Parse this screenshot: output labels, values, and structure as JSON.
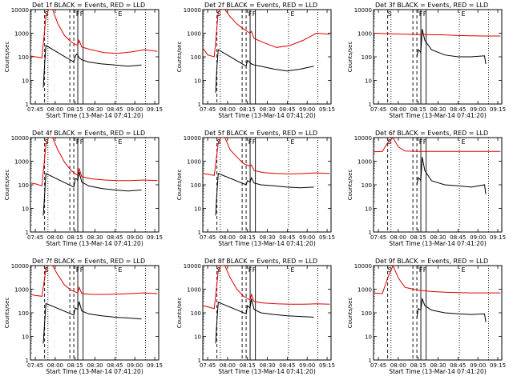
{
  "figure": {
    "layout": "3x3 grid",
    "colors": {
      "events": "#000000",
      "lld": "#dd0000",
      "axes": "#000000",
      "background": "#ffffff"
    }
  },
  "chart_data": [
    {
      "type": "line",
      "title": "Det 1f BLACK = Events, RED = LLD",
      "detector": "1f",
      "xlabel": "Start Time (13-Mar-14 07:41:20)",
      "ylabel": "Counts/sec",
      "ylim": [
        1,
        10000
      ],
      "yscale": "log",
      "yticks": [
        "1",
        "10",
        "100",
        "1000",
        "10000"
      ],
      "xticks": [
        "07:45",
        "08:00",
        "08:15",
        "08:30",
        "08:45",
        "09:00",
        "09:15"
      ],
      "xlim": [
        "07:41:20",
        "09:18:00"
      ],
      "marker_labels": [
        "S",
        "F",
        "F",
        "E"
      ],
      "series": [
        {
          "name": "Events",
          "color": "black",
          "x": [
            "07:51",
            "07:52",
            "07:53",
            "08:14",
            "08:15",
            "08:16",
            "08:17",
            "08:18",
            "08:20",
            "08:25",
            "08:35",
            "08:45",
            "08:55",
            "09:05"
          ],
          "y": [
            5,
            50,
            300,
            60,
            100,
            130,
            120,
            90,
            75,
            60,
            50,
            45,
            40,
            45
          ]
        },
        {
          "name": "LLD",
          "color": "red",
          "x": [
            "07:41",
            "07:45",
            "07:50",
            "07:53",
            "07:55",
            "07:58",
            "08:02",
            "08:07",
            "08:12",
            "08:17",
            "08:18",
            "08:20",
            "08:27",
            "08:37",
            "08:47",
            "08:57",
            "09:07",
            "09:17"
          ],
          "y": [
            110,
            100,
            90,
            5000,
            10000,
            10000,
            2500,
            800,
            420,
            300,
            500,
            260,
            200,
            150,
            140,
            160,
            200,
            170
          ]
        }
      ]
    },
    {
      "type": "line",
      "title": "Det 2f BLACK = Events, RED = LLD",
      "detector": "2f",
      "xlabel": "Start Time (13-Mar-14 07:41:20)",
      "ylabel": "Counts/sec",
      "ylim": [
        1,
        10000
      ],
      "yscale": "log",
      "yticks": [
        "1",
        "10",
        "100",
        "1000",
        "10000"
      ],
      "xticks": [
        "07:45",
        "08:00",
        "08:15",
        "08:30",
        "08:45",
        "09:00",
        "09:15"
      ],
      "xlim": [
        "07:41:20",
        "09:18:00"
      ],
      "marker_labels": [
        "S",
        "F",
        "F",
        "E"
      ],
      "series": [
        {
          "name": "Events",
          "color": "black",
          "x": [
            "07:51",
            "07:52",
            "07:53",
            "08:14",
            "08:15",
            "08:16",
            "08:17",
            "08:18",
            "08:20",
            "08:25",
            "08:35",
            "08:45",
            "08:55",
            "09:05"
          ],
          "y": [
            3,
            40,
            200,
            40,
            70,
            65,
            55,
            50,
            45,
            40,
            30,
            25,
            30,
            40
          ]
        },
        {
          "name": "LLD",
          "color": "red",
          "x": [
            "07:41",
            "07:45",
            "07:50",
            "07:53",
            "07:55",
            "07:58",
            "08:02",
            "08:07",
            "08:12",
            "08:17",
            "08:18",
            "08:20",
            "08:27",
            "08:37",
            "08:47",
            "08:57",
            "09:07",
            "09:17"
          ],
          "y": [
            250,
            120,
            100,
            8000,
            10000,
            10000,
            5000,
            2500,
            1500,
            1000,
            1200,
            600,
            400,
            250,
            300,
            500,
            1000,
            900
          ]
        }
      ]
    },
    {
      "type": "line",
      "title": "Det 3f BLACK = Events, RED = LLD",
      "detector": "3f",
      "xlabel": "Start Time (13-Mar-14 07:41:20)",
      "ylabel": "Counts/sec",
      "ylim": [
        1,
        10000
      ],
      "yscale": "log",
      "yticks": [
        "1",
        "10",
        "100",
        "1000",
        "10000"
      ],
      "xticks": [
        "07:45",
        "08:00",
        "08:15",
        "08:30",
        "08:45",
        "09:00",
        "09:15"
      ],
      "xlim": [
        "07:41:20",
        "09:18:00"
      ],
      "marker_labels": [
        "S",
        "F",
        "F",
        "E"
      ],
      "series": [
        {
          "name": "Events",
          "color": "black",
          "x": [
            "08:14",
            "08:15",
            "08:16",
            "08:17",
            "08:18",
            "08:20",
            "08:25",
            "08:35",
            "08:45",
            "08:55",
            "09:05",
            "09:06"
          ],
          "y": [
            100,
            200,
            180,
            150,
            1500,
            500,
            200,
            120,
            100,
            100,
            110,
            50
          ]
        },
        {
          "name": "LLD",
          "color": "red",
          "x": [
            "07:41",
            "07:55",
            "08:05",
            "08:15",
            "08:25",
            "08:35",
            "08:45",
            "08:55",
            "09:05",
            "09:17"
          ],
          "y": [
            1000,
            950,
            900,
            880,
            860,
            850,
            800,
            780,
            760,
            760
          ]
        }
      ]
    },
    {
      "type": "line",
      "title": "Det 4f BLACK = Events, RED = LLD",
      "detector": "4f",
      "xlabel": "Start Time (13-Mar-14 07:41:20)",
      "ylabel": "Counts/sec",
      "ylim": [
        1,
        10000
      ],
      "yscale": "log",
      "yticks": [
        "1",
        "10",
        "100",
        "1000",
        "10000"
      ],
      "xticks": [
        "07:45",
        "08:00",
        "08:15",
        "08:30",
        "08:45",
        "09:00",
        "09:15"
      ],
      "xlim": [
        "07:41:20",
        "09:18:00"
      ],
      "marker_labels": [
        "S",
        "F",
        "F",
        "E"
      ],
      "series": [
        {
          "name": "Events",
          "color": "black",
          "x": [
            "07:51",
            "07:52",
            "07:53",
            "08:14",
            "08:15",
            "08:16",
            "08:17",
            "08:18",
            "08:20",
            "08:25",
            "08:35",
            "08:45",
            "08:55",
            "09:05"
          ],
          "y": [
            5,
            40,
            300,
            80,
            180,
            180,
            150,
            350,
            130,
            90,
            70,
            60,
            55,
            60
          ]
        },
        {
          "name": "LLD",
          "color": "red",
          "x": [
            "07:41",
            "07:45",
            "07:50",
            "07:53",
            "07:55",
            "07:58",
            "08:02",
            "08:07",
            "08:12",
            "08:17",
            "08:18",
            "08:20",
            "08:27",
            "08:37",
            "08:47",
            "08:57",
            "09:07",
            "09:17"
          ],
          "y": [
            120,
            110,
            90,
            5000,
            10000,
            10000,
            3000,
            900,
            400,
            250,
            500,
            220,
            180,
            160,
            150,
            150,
            160,
            150
          ]
        }
      ]
    },
    {
      "type": "line",
      "title": "Det 5f BLACK = Events, RED = LLD",
      "detector": "5f",
      "xlabel": "Start Time (13-Mar-14 07:41:20)",
      "ylabel": "Counts/sec",
      "ylim": [
        1,
        10000
      ],
      "yscale": "log",
      "yticks": [
        "1",
        "10",
        "100",
        "1000",
        "10000"
      ],
      "xticks": [
        "07:45",
        "08:00",
        "08:15",
        "08:30",
        "08:45",
        "09:00",
        "09:15"
      ],
      "xlim": [
        "07:41:20",
        "09:18:00"
      ],
      "marker_labels": [
        "S",
        "F",
        "F",
        "E"
      ],
      "series": [
        {
          "name": "Events",
          "color": "black",
          "x": [
            "07:51",
            "07:52",
            "07:53",
            "08:14",
            "08:15",
            "08:16",
            "08:17",
            "08:18",
            "08:20",
            "08:25",
            "08:35",
            "08:45",
            "08:55",
            "09:05"
          ],
          "y": [
            5,
            50,
            300,
            100,
            150,
            140,
            130,
            200,
            120,
            100,
            90,
            80,
            75,
            80
          ]
        },
        {
          "name": "LLD",
          "color": "red",
          "x": [
            "07:41",
            "07:45",
            "07:50",
            "07:53",
            "07:55",
            "07:58",
            "08:02",
            "08:07",
            "08:12",
            "08:17",
            "08:18",
            "08:20",
            "08:27",
            "08:37",
            "08:47",
            "08:57",
            "09:07",
            "09:17"
          ],
          "y": [
            300,
            280,
            250,
            6000,
            10000,
            10000,
            3000,
            1500,
            800,
            600,
            700,
            400,
            330,
            300,
            290,
            300,
            320,
            300
          ]
        }
      ]
    },
    {
      "type": "line",
      "title": "Det 6f BLACK = Events, RED = LLD",
      "detector": "6f",
      "xlabel": "Start Time (13-Mar-14 07:41:20)",
      "ylabel": "Counts/sec",
      "ylim": [
        1,
        10000
      ],
      "yscale": "log",
      "yticks": [
        "1",
        "10",
        "100",
        "1000",
        "10000"
      ],
      "xticks": [
        "07:45",
        "08:00",
        "08:15",
        "08:30",
        "08:45",
        "09:00",
        "09:15"
      ],
      "xlim": [
        "07:41:20",
        "09:18:00"
      ],
      "marker_labels": [
        "S",
        "F",
        "F",
        "E"
      ],
      "series": [
        {
          "name": "Events",
          "color": "black",
          "x": [
            "08:14",
            "08:15",
            "08:16",
            "08:17",
            "08:18",
            "08:20",
            "08:25",
            "08:35",
            "08:45",
            "08:55",
            "09:05",
            "09:06"
          ],
          "y": [
            100,
            200,
            180,
            150,
            1500,
            400,
            150,
            100,
            90,
            80,
            100,
            40
          ]
        },
        {
          "name": "LLD",
          "color": "red",
          "x": [
            "07:41",
            "07:48",
            "07:52",
            "07:56",
            "08:00",
            "08:05",
            "08:15",
            "08:25",
            "08:35",
            "08:45",
            "08:55",
            "09:05",
            "09:17"
          ],
          "y": [
            2500,
            2600,
            6000,
            10000,
            4000,
            2700,
            2600,
            2600,
            2600,
            2600,
            2600,
            2600,
            2600
          ]
        }
      ]
    },
    {
      "type": "line",
      "title": "Det 7f BLACK = Events, RED = LLD",
      "detector": "7f",
      "xlabel": "Start Time (13-Mar-14 07:41:20)",
      "ylabel": "Counts/sec",
      "ylim": [
        1,
        10000
      ],
      "yscale": "log",
      "yticks": [
        "1",
        "10",
        "100",
        "1000",
        "10000"
      ],
      "xticks": [
        "07:45",
        "08:00",
        "08:15",
        "08:30",
        "08:45",
        "09:00",
        "09:15"
      ],
      "xlim": [
        "07:41:20",
        "09:18:00"
      ],
      "marker_labels": [
        "S",
        "F",
        "F",
        "E"
      ],
      "series": [
        {
          "name": "Events",
          "color": "black",
          "x": [
            "07:51",
            "07:52",
            "07:53",
            "08:14",
            "08:15",
            "08:16",
            "08:17",
            "08:18",
            "08:20",
            "08:25",
            "08:35",
            "08:45",
            "08:55",
            "09:05"
          ],
          "y": [
            5,
            40,
            250,
            80,
            160,
            150,
            140,
            300,
            120,
            90,
            75,
            65,
            60,
            55
          ]
        },
        {
          "name": "LLD",
          "color": "red",
          "x": [
            "07:41",
            "07:45",
            "07:50",
            "07:53",
            "07:55",
            "07:58",
            "08:02",
            "08:07",
            "08:12",
            "08:17",
            "08:18",
            "08:20",
            "08:27",
            "08:37",
            "08:47",
            "08:57",
            "09:07",
            "09:17"
          ],
          "y": [
            600,
            550,
            500,
            7000,
            10000,
            10000,
            4000,
            1500,
            900,
            700,
            1200,
            650,
            600,
            600,
            620,
            650,
            700,
            650
          ]
        }
      ]
    },
    {
      "type": "line",
      "title": "Det 8f BLACK = Events, RED = LLD",
      "detector": "8f",
      "xlabel": "Start Time (13-Mar-14 07:41:20)",
      "ylabel": "Counts/sec",
      "ylim": [
        1,
        10000
      ],
      "yscale": "log",
      "yticks": [
        "1",
        "10",
        "100",
        "1000",
        "10000"
      ],
      "xticks": [
        "07:45",
        "08:00",
        "08:15",
        "08:30",
        "08:45",
        "09:00",
        "09:15"
      ],
      "xlim": [
        "07:41:20",
        "09:18:00"
      ],
      "marker_labels": [
        "S",
        "F",
        "F",
        "E"
      ],
      "series": [
        {
          "name": "Events",
          "color": "black",
          "x": [
            "07:51",
            "07:52",
            "07:53",
            "08:14",
            "08:15",
            "08:16",
            "08:17",
            "08:18",
            "08:20",
            "08:25",
            "08:35",
            "08:45",
            "08:55",
            "09:05"
          ],
          "y": [
            5,
            50,
            280,
            90,
            200,
            180,
            160,
            400,
            140,
            100,
            85,
            75,
            70,
            65
          ]
        },
        {
          "name": "LLD",
          "color": "red",
          "x": [
            "07:41",
            "07:45",
            "07:50",
            "07:53",
            "07:55",
            "07:58",
            "08:02",
            "08:07",
            "08:12",
            "08:17",
            "08:18",
            "08:20",
            "08:27",
            "08:37",
            "08:47",
            "08:57",
            "09:07",
            "09:17"
          ],
          "y": [
            200,
            180,
            150,
            6000,
            10000,
            10000,
            3000,
            1000,
            500,
            350,
            600,
            300,
            260,
            240,
            230,
            230,
            240,
            230
          ]
        }
      ]
    },
    {
      "type": "line",
      "title": "Det 9f BLACK = Events, RED = LLD",
      "detector": "9f",
      "xlabel": "Start Time (13-Mar-14 07:41:20)",
      "ylabel": "Counts/sec",
      "ylim": [
        1,
        10000
      ],
      "yscale": "log",
      "yticks": [
        "1",
        "10",
        "100",
        "1000",
        "10000"
      ],
      "xticks": [
        "07:45",
        "08:00",
        "08:15",
        "08:30",
        "08:45",
        "09:00",
        "09:15"
      ],
      "xlim": [
        "07:41:20",
        "09:18:00"
      ],
      "marker_labels": [
        "S",
        "F",
        "F",
        "E"
      ],
      "series": [
        {
          "name": "Events",
          "color": "black",
          "x": [
            "08:14",
            "08:15",
            "08:16",
            "08:17",
            "08:18",
            "08:20",
            "08:25",
            "08:35",
            "08:45",
            "08:55",
            "09:05",
            "09:06"
          ],
          "y": [
            60,
            150,
            140,
            130,
            400,
            200,
            130,
            100,
            90,
            85,
            90,
            40
          ]
        },
        {
          "name": "LLD",
          "color": "red",
          "x": [
            "07:41",
            "07:48",
            "07:52",
            "07:56",
            "08:00",
            "08:05",
            "08:15",
            "08:25",
            "08:35",
            "08:45",
            "08:55",
            "09:05",
            "09:17"
          ],
          "y": [
            700,
            650,
            3000,
            10000,
            3000,
            1200,
            900,
            800,
            750,
            720,
            700,
            700,
            700
          ]
        }
      ]
    }
  ]
}
